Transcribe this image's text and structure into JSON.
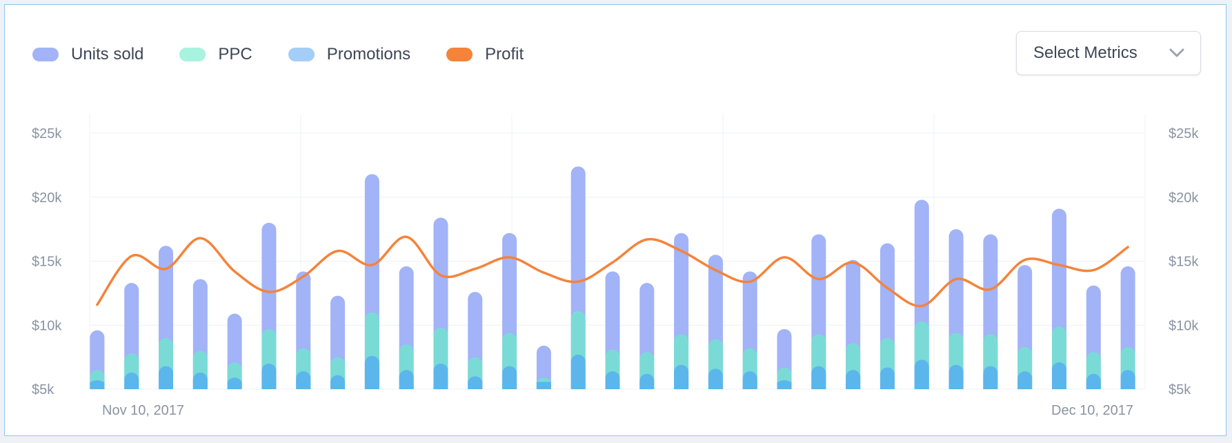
{
  "legend": [
    {
      "label": "Units sold",
      "color": "#a2b3f7"
    },
    {
      "label": "PPC",
      "color": "#a8f3df"
    },
    {
      "label": "Promotions",
      "color": "#a4cdf8"
    },
    {
      "label": "Profit",
      "color": "#f5833a"
    }
  ],
  "select": {
    "label": "Select Metrics",
    "icon": "chevron-down-icon"
  },
  "chart_data": {
    "type": "bar",
    "ylim": [
      5000,
      25000
    ],
    "y_ticks": [
      {
        "value": 5000,
        "label": "$5k"
      },
      {
        "value": 10000,
        "label": "$10k"
      },
      {
        "value": 15000,
        "label": "$15k"
      },
      {
        "value": 20000,
        "label": "$20k"
      },
      {
        "value": 25000,
        "label": "$25k"
      }
    ],
    "x_labels": {
      "start": "Nov 10, 2017",
      "end": "Dec 10, 2017"
    },
    "grid": true,
    "legend_position": "top-left",
    "colors": {
      "units": "#a2b3f7",
      "ppc": "#7adbd6",
      "promotions": "#5bb6ec",
      "profit": "#f5833a"
    },
    "series": [
      {
        "name": "Units sold",
        "kind": "bar",
        "values": [
          9600,
          13300,
          16200,
          13600,
          10900,
          18000,
          14200,
          12300,
          21800,
          14600,
          18400,
          12600,
          17200,
          8400,
          22400,
          14200,
          13300,
          17200,
          15500,
          14200,
          9700,
          17100,
          15100,
          16400,
          19800,
          17500,
          17100,
          14700,
          19100,
          13100,
          14600
        ]
      },
      {
        "name": "PPC",
        "kind": "bar",
        "values": [
          6500,
          7800,
          9000,
          8000,
          7100,
          9700,
          8200,
          7500,
          11000,
          8500,
          9800,
          7500,
          9400,
          5900,
          11100,
          8100,
          7900,
          9300,
          8900,
          8200,
          6700,
          9300,
          8600,
          9000,
          10300,
          9400,
          9300,
          8300,
          9900,
          7900,
          8300
        ]
      },
      {
        "name": "Promotions",
        "kind": "bar",
        "values": [
          5700,
          6300,
          6800,
          6300,
          5900,
          7000,
          6400,
          6100,
          7600,
          6500,
          7000,
          6000,
          6800,
          5500,
          7700,
          6400,
          6200,
          6900,
          6600,
          6400,
          5700,
          6800,
          6500,
          6700,
          7300,
          6900,
          6800,
          6400,
          7100,
          6200,
          6500
        ]
      },
      {
        "name": "Profit",
        "kind": "line",
        "values": [
          11600,
          15400,
          14400,
          16800,
          14200,
          12600,
          13800,
          15800,
          14700,
          16900,
          13900,
          14400,
          15300,
          14100,
          13400,
          14900,
          16700,
          15800,
          14300,
          13400,
          15300,
          13600,
          14900,
          12900,
          11500,
          13600,
          12800,
          15100,
          14700,
          14300,
          16100
        ]
      }
    ]
  }
}
